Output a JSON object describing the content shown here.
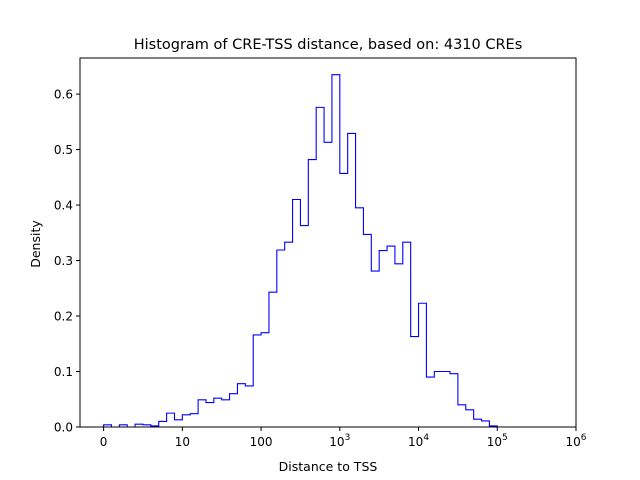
{
  "chart_data": {
    "type": "histogram-step",
    "title": "Histogram of CRE-TSS distance, based on: 4310 CREs",
    "xlabel": "Distance to TSS",
    "ylabel": "Density",
    "x_scale": "symlog",
    "xlim": [
      -0.3,
      6
    ],
    "ylim": [
      0,
      0.665
    ],
    "x_ticks": [
      {
        "value": 0,
        "label": "0"
      },
      {
        "value": 1,
        "label": "10"
      },
      {
        "value": 2,
        "label": "100"
      },
      {
        "value": 3,
        "base": "10",
        "exp": "3"
      },
      {
        "value": 4,
        "base": "10",
        "exp": "4"
      },
      {
        "value": 5,
        "base": "10",
        "exp": "5"
      },
      {
        "value": 6,
        "base": "10",
        "exp": "6"
      }
    ],
    "y_ticks": [
      {
        "value": 0.0,
        "label": "0.0"
      },
      {
        "value": 0.1,
        "label": "0.1"
      },
      {
        "value": 0.2,
        "label": "0.2"
      },
      {
        "value": 0.3,
        "label": "0.3"
      },
      {
        "value": 0.4,
        "label": "0.4"
      },
      {
        "value": 0.5,
        "label": "0.5"
      },
      {
        "value": 0.6,
        "label": "0.6"
      }
    ],
    "bin_width": 0.1,
    "bin_start": 0.0,
    "density": [
      0.004,
      0.0,
      0.004,
      0.0,
      0.005,
      0.004,
      0.002,
      0.01,
      0.025,
      0.013,
      0.022,
      0.024,
      0.049,
      0.044,
      0.052,
      0.049,
      0.06,
      0.078,
      0.074,
      0.166,
      0.17,
      0.243,
      0.319,
      0.333,
      0.41,
      0.363,
      0.482,
      0.576,
      0.513,
      0.635,
      0.457,
      0.529,
      0.395,
      0.347,
      0.281,
      0.318,
      0.326,
      0.294,
      0.333,
      0.163,
      0.223,
      0.09,
      0.1,
      0.1,
      0.096,
      0.04,
      0.031,
      0.014,
      0.011,
      0.002,
      0.0
    ],
    "line_color": "#0000ff"
  }
}
